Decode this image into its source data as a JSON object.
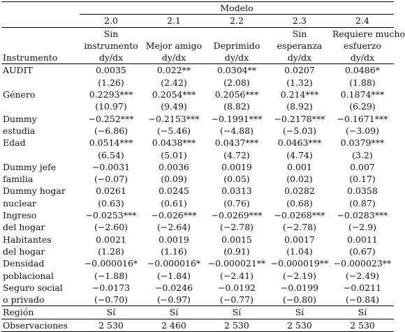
{
  "header": {
    "group_label": "Modelo",
    "instrument_label": "Instrumento",
    "columns": [
      {
        "number": "2.0",
        "name_line1": "Sin",
        "name_line2": "instrumento",
        "stat": "dy/dx"
      },
      {
        "number": "2.1",
        "name_line1": "",
        "name_line2": "Mejor amigo",
        "stat": "dy/dx"
      },
      {
        "number": "2.2",
        "name_line1": "",
        "name_line2": "Deprimido",
        "stat": "dy/dx"
      },
      {
        "number": "2.3",
        "name_line1": "Sin",
        "name_line2": "esperanza",
        "stat": "dy/dx"
      },
      {
        "number": "2.4",
        "name_line1": "Requiere mucho",
        "name_line2": "esfuerzo",
        "stat": "dy/dx"
      }
    ]
  },
  "rows": [
    {
      "label1": "AUDIT",
      "label2": "",
      "coef": [
        "0.0035",
        "0.022**",
        "0.0304**",
        "0.0207",
        "0.0486*"
      ],
      "t": [
        "(1.26)",
        "(2.42)",
        "(2.08)",
        "(1.32)",
        "(1.88)"
      ]
    },
    {
      "label1": "Género",
      "label2": "",
      "coef": [
        "0.2293***",
        "0.2054***",
        "0.2056***",
        "0.214***",
        "0.1874***"
      ],
      "t": [
        "(10.97)",
        "(9.49)",
        "(8.82)",
        "(8.92)",
        "(6.29)"
      ]
    },
    {
      "label1": "Dummy",
      "label2": "estudia",
      "coef": [
        "−0.252***",
        "−0.2153***",
        "−0.1991***",
        "−0.2178***",
        "−0.1671***"
      ],
      "t": [
        "(−6.86)",
        "(−5.46)",
        "(−4.88)",
        "(−5.03)",
        "(−3.09)"
      ]
    },
    {
      "label1": "Edad",
      "label2": "",
      "coef": [
        "0.0514***",
        "0.0438***",
        "0.0437***",
        "0.0463***",
        "0.0379***"
      ],
      "t": [
        "(6.54)",
        "(5.01)",
        "(4.72)",
        "(4.74)",
        "(3.2)"
      ]
    },
    {
      "label1": "Dummy jefe",
      "label2": "familia",
      "coef": [
        "−0.0031",
        "0.0036",
        "0.0019",
        "0.001",
        "0.007"
      ],
      "t": [
        "(−0.07)",
        "(0.09)",
        "(0.05)",
        "(0.02)",
        "(0.17)"
      ]
    },
    {
      "label1": "Dummy hogar",
      "label2": "nuclear",
      "coef": [
        "0.0261",
        "0.0245",
        "0.0313",
        "0.0282",
        "0.0358"
      ],
      "t": [
        "(0.63)",
        "(0.61)",
        "(0.76)",
        "(0.68)",
        "(0.87)"
      ]
    },
    {
      "label1": "Ingreso",
      "label2": "del hogar",
      "coef": [
        "−0.0253***",
        "−0.026***",
        "−0.0269***",
        "−0.0268***",
        "−0.0283***"
      ],
      "t": [
        "(−2.60)",
        "(−2.64)",
        "(−2.78)",
        "(−2.78)",
        "(−2.9)"
      ]
    },
    {
      "label1": "Habitantes",
      "label2": "del hogar",
      "coef": [
        "0.0021",
        "0.0019",
        "0.0015",
        "0.0017",
        "0.0011"
      ],
      "t": [
        "(1.28)",
        "(1.16)",
        "(0.91)",
        "(1.04)",
        "(0.67)"
      ]
    },
    {
      "label1": "Densidad",
      "label2": "poblacional",
      "coef": [
        "−0.000016*",
        "−0.000016*",
        "−0.000021**",
        "−0.000019**",
        "−0.000023**"
      ],
      "t": [
        "(−1.88)",
        "(−1.84)",
        "(−2.41)",
        "(−2.19)",
        "(−2.49)"
      ]
    },
    {
      "label1": "Seguro social",
      "label2": "o privado",
      "coef": [
        "−0.0173",
        "−0.0246",
        "−0.0192",
        "−0.0199",
        "−0.0211"
      ],
      "t": [
        "(−0.70)",
        "(−0.97)",
        "(−0.77)",
        "(−0.80)",
        "(−0.84)"
      ]
    }
  ],
  "footer": {
    "region_label": "Región",
    "region_values": [
      "Sí",
      "Sí",
      "Sí",
      "Sí",
      "Sí"
    ],
    "obs_label": "Observaciones",
    "obs_values": [
      "2 530",
      "2 460",
      "2 530",
      "2 530",
      "2 530"
    ]
  }
}
